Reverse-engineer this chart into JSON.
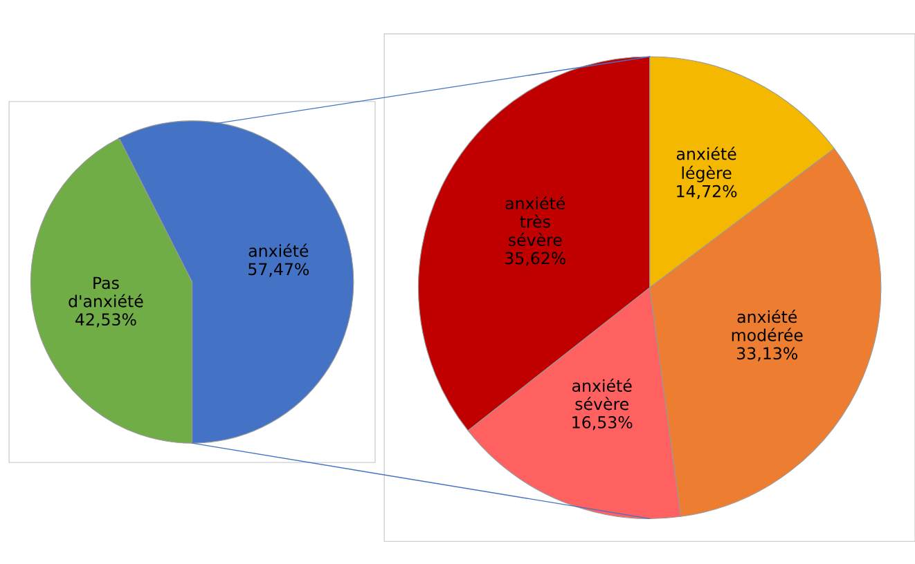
{
  "chart_data": [
    {
      "type": "pie",
      "categories": [
        "Pas d'anxiété",
        "anxiété"
      ],
      "values": [
        42.53,
        57.47
      ],
      "colors": [
        "#70ad47",
        "#4472c4"
      ],
      "value_labels": [
        "42,53%",
        "57,47%"
      ]
    },
    {
      "type": "pie",
      "categories": [
        "anxiété légère",
        "anxiété modérée",
        "anxiété sévère",
        "anxiété très sévère"
      ],
      "values": [
        14.72,
        33.13,
        16.53,
        35.62
      ],
      "colors": [
        "#f4b800",
        "#ed7d31",
        "#ff6161",
        "#c00000"
      ],
      "value_labels": [
        "14,72%",
        "33,13%",
        "16,53%",
        "35,62%"
      ]
    }
  ]
}
